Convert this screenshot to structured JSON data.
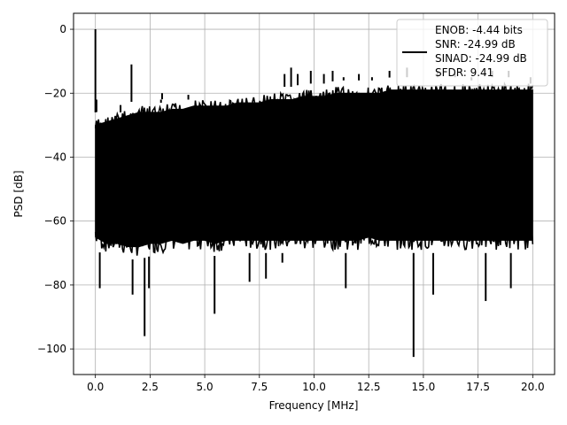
{
  "chart_data": {
    "type": "line",
    "title": "",
    "xlabel": "Frequency [MHz]",
    "ylabel": "PSD [dB]",
    "xlim": [
      -1.0,
      21.0
    ],
    "ylim": [
      -108.0,
      5.0
    ],
    "xticks": [
      0.0,
      2.5,
      5.0,
      7.5,
      10.0,
      12.5,
      15.0,
      17.5,
      20.0
    ],
    "xtick_labels": [
      "0.0",
      "2.5",
      "5.0",
      "7.5",
      "10.0",
      "12.5",
      "15.0",
      "17.5",
      "20.0"
    ],
    "yticks": [
      0,
      -20,
      -40,
      -60,
      -80,
      -100
    ],
    "ytick_labels": [
      "0",
      "−20",
      "−40",
      "−60",
      "−80",
      "−100"
    ],
    "grid": true,
    "legend_position": "top-right",
    "legend_entries": [
      "ENOB: -4.44 bits",
      "SNR: -24.99 dB",
      "SINAD: -24.99 dB",
      "SFDR: 9.41"
    ],
    "series": [
      {
        "color": "#000000",
        "band": {
          "x": [
            0.0,
            0.5,
            1.0,
            1.5,
            2.0,
            2.5,
            3.0,
            3.5,
            4.0,
            4.5,
            5.0,
            5.5,
            6.0,
            6.5,
            7.0,
            7.5,
            8.0,
            8.5,
            9.0,
            9.5,
            10.0,
            10.5,
            11.0,
            11.5,
            12.0,
            12.5,
            13.0,
            13.5,
            14.0,
            14.5,
            15.0,
            15.5,
            16.0,
            16.5,
            17.0,
            17.5,
            18.0,
            18.5,
            19.0,
            19.5,
            20.0
          ],
          "upper": [
            -30,
            -29,
            -28,
            -27,
            -26,
            -26,
            -26,
            -25,
            -25,
            -24,
            -24,
            -24,
            -24,
            -23,
            -23,
            -23,
            -22,
            -22,
            -22,
            -21,
            -21,
            -21,
            -20,
            -20,
            -20,
            -20,
            -20,
            -19,
            -19,
            -19,
            -19,
            -19,
            -19,
            -19,
            -19,
            -19,
            -19,
            -19,
            -19,
            -19,
            -19
          ],
          "lower": [
            -65,
            -67,
            -67,
            -68,
            -68,
            -67,
            -67,
            -66,
            -67,
            -66,
            -66,
            -67,
            -66,
            -66,
            -66,
            -66,
            -66,
            -66,
            -66,
            -66,
            -66,
            -66,
            -66,
            -66,
            -66,
            -65,
            -66,
            -66,
            -66,
            -66,
            -66,
            -66,
            -66,
            -66,
            -66,
            -66,
            -66,
            -66,
            -66,
            -66,
            -66
          ]
        },
        "peaks": [
          {
            "x": 0.0,
            "y": 0
          },
          {
            "x": 0.05,
            "y": -22
          },
          {
            "x": 1.15,
            "y": -26
          },
          {
            "x": 1.65,
            "y": -11
          },
          {
            "x": 3.0,
            "y": -23
          },
          {
            "x": 3.05,
            "y": -20
          },
          {
            "x": 4.25,
            "y": -22
          },
          {
            "x": 5.85,
            "y": -20
          },
          {
            "x": 8.65,
            "y": -14
          },
          {
            "x": 8.95,
            "y": -12
          },
          {
            "x": 9.25,
            "y": -14
          },
          {
            "x": 9.85,
            "y": -13
          },
          {
            "x": 10.45,
            "y": -14
          },
          {
            "x": 10.85,
            "y": -13
          },
          {
            "x": 11.35,
            "y": -15
          },
          {
            "x": 12.05,
            "y": -14
          },
          {
            "x": 12.65,
            "y": -15
          },
          {
            "x": 13.45,
            "y": -13
          },
          {
            "x": 14.25,
            "y": -12
          },
          {
            "x": 15.65,
            "y": -13
          },
          {
            "x": 16.45,
            "y": -14
          },
          {
            "x": 17.2,
            "y": -16
          },
          {
            "x": 18.15,
            "y": -13
          },
          {
            "x": 18.9,
            "y": -13
          },
          {
            "x": 19.9,
            "y": -17
          }
        ],
        "dips": [
          {
            "x": 0.2,
            "y": -81
          },
          {
            "x": 1.7,
            "y": -83
          },
          {
            "x": 2.25,
            "y": -96
          },
          {
            "x": 2.45,
            "y": -81
          },
          {
            "x": 5.45,
            "y": -89
          },
          {
            "x": 7.05,
            "y": -79
          },
          {
            "x": 7.8,
            "y": -78
          },
          {
            "x": 8.55,
            "y": -73
          },
          {
            "x": 11.45,
            "y": -81
          },
          {
            "x": 14.55,
            "y": -102.5
          },
          {
            "x": 15.45,
            "y": -83
          },
          {
            "x": 17.85,
            "y": -85
          },
          {
            "x": 19.0,
            "y": -81
          },
          {
            "x": 19.9,
            "y": -70
          }
        ]
      }
    ]
  }
}
